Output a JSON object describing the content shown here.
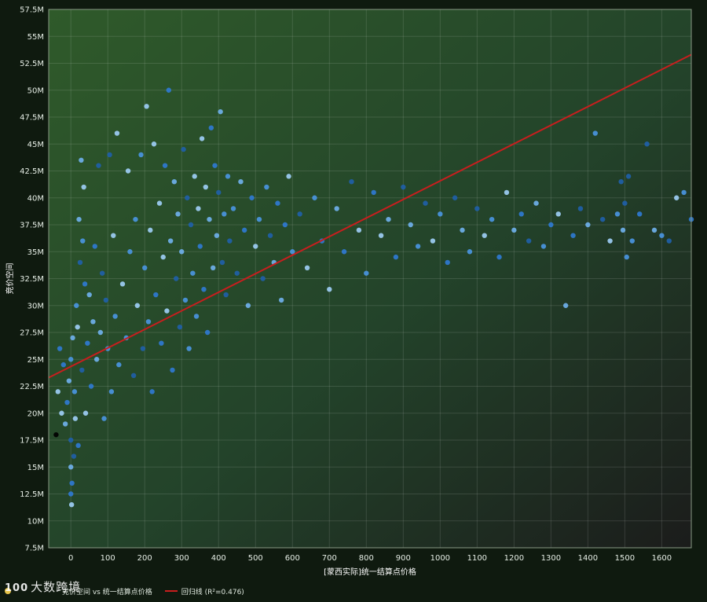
{
  "chart_data": {
    "type": "scatter",
    "title": "",
    "xlabel": "[蒙西实际]统一结算点价格",
    "ylabel": "竞价空间",
    "xlim": [
      -60,
      1680
    ],
    "ylim": [
      7500000,
      57500000
    ],
    "xticks": [
      0,
      100,
      200,
      300,
      400,
      500,
      600,
      700,
      800,
      900,
      1000,
      1100,
      1200,
      1300,
      1400,
      1500,
      1600
    ],
    "xtick_labels": [
      "0",
      "100",
      "200",
      "300",
      "400",
      "500",
      "600",
      "700",
      "800",
      "900",
      "1000",
      "1100",
      "1200",
      "1300",
      "1400",
      "1500",
      "1600"
    ],
    "yticks": [
      7500000,
      10000000,
      12500000,
      15000000,
      17500000,
      20000000,
      22500000,
      25000000,
      27500000,
      30000000,
      32500000,
      35000000,
      37500000,
      40000000,
      42500000,
      45000000,
      47500000,
      50000000,
      52500000,
      55000000,
      57500000
    ],
    "ytick_labels": [
      "7.5M",
      "10M",
      "12.5M",
      "15M",
      "17.5M",
      "20M",
      "22.5M",
      "25M",
      "27.5M",
      "30M",
      "32.5M",
      "35M",
      "37.5M",
      "40M",
      "42.5M",
      "45M",
      "47.5M",
      "50M",
      "52.5M",
      "55M",
      "57.5M"
    ],
    "grid": true,
    "legend_position": "bottom-left",
    "series": [
      {
        "name": "竞价空间 vs 统一结算点价格",
        "kind": "scatter",
        "points": [
          [
            -40,
            18000000
          ],
          [
            -35,
            22000000
          ],
          [
            -30,
            26000000
          ],
          [
            -25,
            20000000
          ],
          [
            -20,
            24500000
          ],
          [
            -15,
            19000000
          ],
          [
            -10,
            21000000
          ],
          [
            -5,
            23000000
          ],
          [
            0,
            12500000
          ],
          [
            0,
            15000000
          ],
          [
            0,
            17500000
          ],
          [
            0,
            25000000
          ],
          [
            2,
            11500000
          ],
          [
            3,
            13500000
          ],
          [
            5,
            27000000
          ],
          [
            8,
            16000000
          ],
          [
            10,
            22000000
          ],
          [
            12,
            19500000
          ],
          [
            15,
            30000000
          ],
          [
            18,
            28000000
          ],
          [
            20,
            17000000
          ],
          [
            22,
            38000000
          ],
          [
            25,
            34000000
          ],
          [
            28,
            43500000
          ],
          [
            30,
            24000000
          ],
          [
            32,
            36000000
          ],
          [
            35,
            41000000
          ],
          [
            38,
            32000000
          ],
          [
            40,
            20000000
          ],
          [
            45,
            26500000
          ],
          [
            50,
            31000000
          ],
          [
            55,
            22500000
          ],
          [
            60,
            28500000
          ],
          [
            65,
            35500000
          ],
          [
            70,
            25000000
          ],
          [
            75,
            43000000
          ],
          [
            80,
            27500000
          ],
          [
            85,
            33000000
          ],
          [
            90,
            19500000
          ],
          [
            95,
            30500000
          ],
          [
            100,
            26000000
          ],
          [
            105,
            44000000
          ],
          [
            110,
            22000000
          ],
          [
            115,
            36500000
          ],
          [
            120,
            29000000
          ],
          [
            125,
            46000000
          ],
          [
            130,
            24500000
          ],
          [
            140,
            32000000
          ],
          [
            150,
            27000000
          ],
          [
            155,
            42500000
          ],
          [
            160,
            35000000
          ],
          [
            170,
            23500000
          ],
          [
            175,
            38000000
          ],
          [
            180,
            30000000
          ],
          [
            190,
            44000000
          ],
          [
            195,
            26000000
          ],
          [
            200,
            33500000
          ],
          [
            205,
            48500000
          ],
          [
            210,
            28500000
          ],
          [
            215,
            37000000
          ],
          [
            220,
            22000000
          ],
          [
            225,
            45000000
          ],
          [
            230,
            31000000
          ],
          [
            240,
            39500000
          ],
          [
            245,
            26500000
          ],
          [
            250,
            34500000
          ],
          [
            255,
            43000000
          ],
          [
            260,
            29500000
          ],
          [
            265,
            50000000
          ],
          [
            270,
            36000000
          ],
          [
            275,
            24000000
          ],
          [
            280,
            41500000
          ],
          [
            285,
            32500000
          ],
          [
            290,
            38500000
          ],
          [
            295,
            28000000
          ],
          [
            300,
            35000000
          ],
          [
            305,
            44500000
          ],
          [
            310,
            30500000
          ],
          [
            315,
            40000000
          ],
          [
            320,
            26000000
          ],
          [
            325,
            37500000
          ],
          [
            330,
            33000000
          ],
          [
            335,
            42000000
          ],
          [
            340,
            29000000
          ],
          [
            345,
            39000000
          ],
          [
            350,
            35500000
          ],
          [
            355,
            45500000
          ],
          [
            360,
            31500000
          ],
          [
            365,
            41000000
          ],
          [
            370,
            27500000
          ],
          [
            375,
            38000000
          ],
          [
            380,
            46500000
          ],
          [
            385,
            33500000
          ],
          [
            390,
            43000000
          ],
          [
            395,
            36500000
          ],
          [
            400,
            40500000
          ],
          [
            405,
            48000000
          ],
          [
            410,
            34000000
          ],
          [
            415,
            38500000
          ],
          [
            420,
            31000000
          ],
          [
            425,
            42000000
          ],
          [
            430,
            36000000
          ],
          [
            440,
            39000000
          ],
          [
            450,
            33000000
          ],
          [
            460,
            41500000
          ],
          [
            470,
            37000000
          ],
          [
            480,
            30000000
          ],
          [
            490,
            40000000
          ],
          [
            500,
            35500000
          ],
          [
            510,
            38000000
          ],
          [
            520,
            32500000
          ],
          [
            530,
            41000000
          ],
          [
            540,
            36500000
          ],
          [
            550,
            34000000
          ],
          [
            560,
            39500000
          ],
          [
            570,
            30500000
          ],
          [
            580,
            37500000
          ],
          [
            590,
            42000000
          ],
          [
            600,
            35000000
          ],
          [
            620,
            38500000
          ],
          [
            640,
            33500000
          ],
          [
            660,
            40000000
          ],
          [
            680,
            36000000
          ],
          [
            700,
            31500000
          ],
          [
            720,
            39000000
          ],
          [
            740,
            35000000
          ],
          [
            760,
            41500000
          ],
          [
            780,
            37000000
          ],
          [
            800,
            33000000
          ],
          [
            820,
            40500000
          ],
          [
            840,
            36500000
          ],
          [
            860,
            38000000
          ],
          [
            880,
            34500000
          ],
          [
            900,
            41000000
          ],
          [
            920,
            37500000
          ],
          [
            940,
            35500000
          ],
          [
            960,
            39500000
          ],
          [
            980,
            36000000
          ],
          [
            1000,
            38500000
          ],
          [
            1020,
            34000000
          ],
          [
            1040,
            40000000
          ],
          [
            1060,
            37000000
          ],
          [
            1080,
            35000000
          ],
          [
            1100,
            39000000
          ],
          [
            1120,
            36500000
          ],
          [
            1140,
            38000000
          ],
          [
            1160,
            34500000
          ],
          [
            1180,
            40500000
          ],
          [
            1200,
            37000000
          ],
          [
            1220,
            38500000
          ],
          [
            1240,
            36000000
          ],
          [
            1260,
            39500000
          ],
          [
            1280,
            35500000
          ],
          [
            1300,
            37500000
          ],
          [
            1320,
            38500000
          ],
          [
            1340,
            30000000
          ],
          [
            1360,
            36500000
          ],
          [
            1380,
            39000000
          ],
          [
            1400,
            37500000
          ],
          [
            1420,
            46000000
          ],
          [
            1440,
            38000000
          ],
          [
            1460,
            36000000
          ],
          [
            1480,
            38500000
          ],
          [
            1490,
            41500000
          ],
          [
            1495,
            37000000
          ],
          [
            1500,
            39500000
          ],
          [
            1505,
            34500000
          ],
          [
            1510,
            42000000
          ],
          [
            1520,
            36000000
          ],
          [
            1540,
            38500000
          ],
          [
            1560,
            45000000
          ],
          [
            1580,
            37000000
          ],
          [
            1600,
            36500000
          ],
          [
            1620,
            36000000
          ],
          [
            1640,
            40000000
          ],
          [
            1660,
            40500000
          ],
          [
            1680,
            38000000
          ]
        ]
      },
      {
        "name": "回归线 (R²=0.476)",
        "kind": "line",
        "color": "#c81e1e",
        "points": [
          [
            -60,
            23300000
          ],
          [
            1680,
            53300000
          ]
        ]
      }
    ]
  },
  "legend": {
    "items": [
      {
        "label": "竞价空间 vs 统一结算点价格",
        "color": "#e8c54a"
      },
      {
        "label": "回归线 (R²=0.476)",
        "color": "#c81e1e"
      }
    ]
  },
  "watermark": {
    "mark": "100",
    "text": "大数跨境"
  },
  "colors": {
    "point_palette": [
      "#1f5fa8",
      "#2f7ad1",
      "#4a95e0",
      "#6fb0ea",
      "#9dcdf4"
    ],
    "regression": "#c81e1e",
    "plot_bg_top": "#2f5a2a",
    "plot_bg_bottom": "#1a1a1a"
  }
}
